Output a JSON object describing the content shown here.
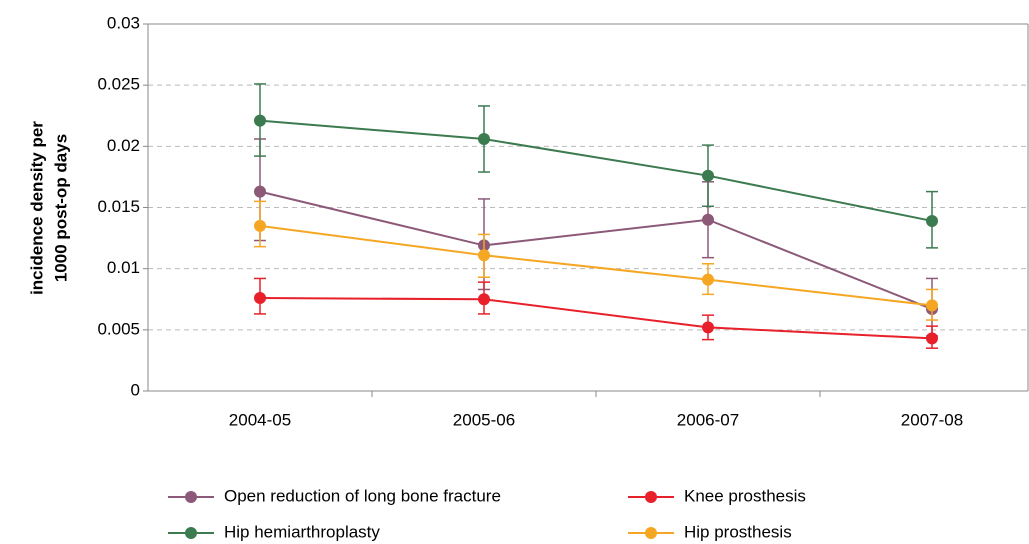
{
  "chart_data": {
    "type": "line",
    "ylabel": [
      "incidence density per",
      "1000 post-op days"
    ],
    "categories": [
      "2004-05",
      "2005-06",
      "2006-07",
      "2007-08"
    ],
    "ylim": [
      0,
      0.03
    ],
    "yticks": [
      0,
      0.005,
      0.01,
      0.015,
      0.02,
      0.025,
      0.03
    ],
    "grid": true,
    "legend": "bottom",
    "series": [
      {
        "name": "Open reduction of long bone fracture",
        "color": "#8c5a78",
        "values": [
          0.0163,
          0.0119,
          0.014,
          0.0067
        ],
        "lower": [
          0.0123,
          0.0083,
          0.0109,
          0.0045
        ],
        "upper": [
          0.0206,
          0.0157,
          0.0171,
          0.0092
        ]
      },
      {
        "name": "Knee prosthesis",
        "color": "#e8202a",
        "values": [
          0.0076,
          0.0075,
          0.0052,
          0.0043
        ],
        "lower": [
          0.0063,
          0.0063,
          0.0042,
          0.0035
        ],
        "upper": [
          0.0092,
          0.0089,
          0.0062,
          0.0053
        ]
      },
      {
        "name": "Hip hemiarthroplasty",
        "color": "#3c7a50",
        "values": [
          0.0221,
          0.0206,
          0.0176,
          0.0139
        ],
        "lower": [
          0.0192,
          0.0179,
          0.0151,
          0.0117
        ],
        "upper": [
          0.0251,
          0.0233,
          0.0201,
          0.0163
        ]
      },
      {
        "name": "Hip prosthesis",
        "color": "#f5a623",
        "values": [
          0.0135,
          0.0111,
          0.0091,
          0.007
        ],
        "lower": [
          0.0118,
          0.0093,
          0.0079,
          0.0058
        ],
        "upper": [
          0.0155,
          0.0128,
          0.0104,
          0.0083
        ]
      }
    ]
  }
}
